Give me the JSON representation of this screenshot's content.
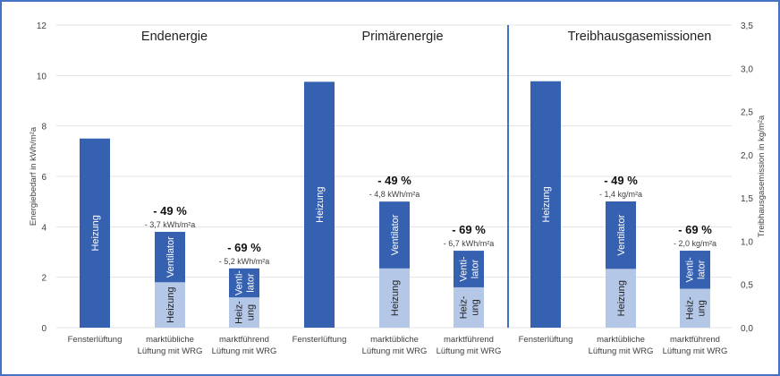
{
  "chart_data": {
    "type": "bar",
    "stacked": true,
    "grid": true,
    "colors": {
      "Heizung": "#3561b0",
      "Heizung_light": "#b4c7e7",
      "Ventilator": "#3561b0",
      "divider": "#4472c4"
    },
    "left_axis": {
      "label": "Energiebedarf in kWh/m²a",
      "ylim": [
        0,
        12
      ],
      "ticks": [
        "0",
        "2",
        "4",
        "6",
        "8",
        "10",
        "12"
      ]
    },
    "right_axis": {
      "label": "Treibhausgasemission in kg/m²a",
      "ylim": [
        0,
        3.5
      ],
      "ticks": [
        "0,0",
        "0,5",
        "1,0",
        "1,5",
        "2,0",
        "2,5",
        "3,0",
        "3,5"
      ]
    },
    "groups": [
      {
        "title": "Endenergie",
        "axis": "left",
        "bars": [
          {
            "category": "Fensterlüftung",
            "Heizung": 7.5,
            "Ventilator": 0,
            "labels": [
              "Heizung"
            ]
          },
          {
            "category": "marktübliche|Lüftung mit WRG",
            "Heizung": 1.8,
            "Ventilator": 2.0,
            "labels": [
              "Heizung",
              "Ventilator"
            ],
            "reduction": "- 49 %",
            "reduction_abs": "- 3,7 kWh/m²a"
          },
          {
            "category": "marktführend|Lüftung mit WRG",
            "Heizung": 1.2,
            "Ventilator": 1.15,
            "labels": [
              "Heiz-|ung",
              "Venti-|lator"
            ],
            "reduction": "- 69 %",
            "reduction_abs": "- 5,2 kWh/m²a"
          }
        ]
      },
      {
        "title": "Primärenergie",
        "axis": "left",
        "bars": [
          {
            "category": "Fensterlüftung",
            "Heizung": 9.75,
            "Ventilator": 0,
            "labels": [
              "Heizung"
            ]
          },
          {
            "category": "marktübliche|Lüftung mit WRG",
            "Heizung": 2.35,
            "Ventilator": 2.65,
            "labels": [
              "Heizung",
              "Ventilator"
            ],
            "reduction": "- 49 %",
            "reduction_abs": "- 4,8 kWh/m²a"
          },
          {
            "category": "marktführend|Lüftung mit WRG",
            "Heizung": 1.6,
            "Ventilator": 1.45,
            "labels": [
              "Heiz-|ung",
              "Venti-|lator"
            ],
            "reduction": "- 69 %",
            "reduction_abs": "- 6,7 kWh/m²a"
          }
        ]
      },
      {
        "title": "Treibhausgasemissionen",
        "axis": "right",
        "bars": [
          {
            "category": "Fensterlüftung",
            "Heizung": 2.85,
            "Ventilator": 0,
            "labels": [
              "Heizung"
            ]
          },
          {
            "category": "marktübliche|Lüftung mit WRG",
            "Heizung": 0.68,
            "Ventilator": 0.78,
            "labels": [
              "Heizung",
              "Ventilator"
            ],
            "reduction": "- 49 %",
            "reduction_abs": "- 1,4 kg/m²a"
          },
          {
            "category": "marktführend|Lüftung mit WRG",
            "Heizung": 0.45,
            "Ventilator": 0.44,
            "labels": [
              "Heiz-|ung",
              "Venti-|lator"
            ],
            "reduction": "- 69 %",
            "reduction_abs": "- 2,0 kg/m²a"
          }
        ]
      }
    ]
  }
}
